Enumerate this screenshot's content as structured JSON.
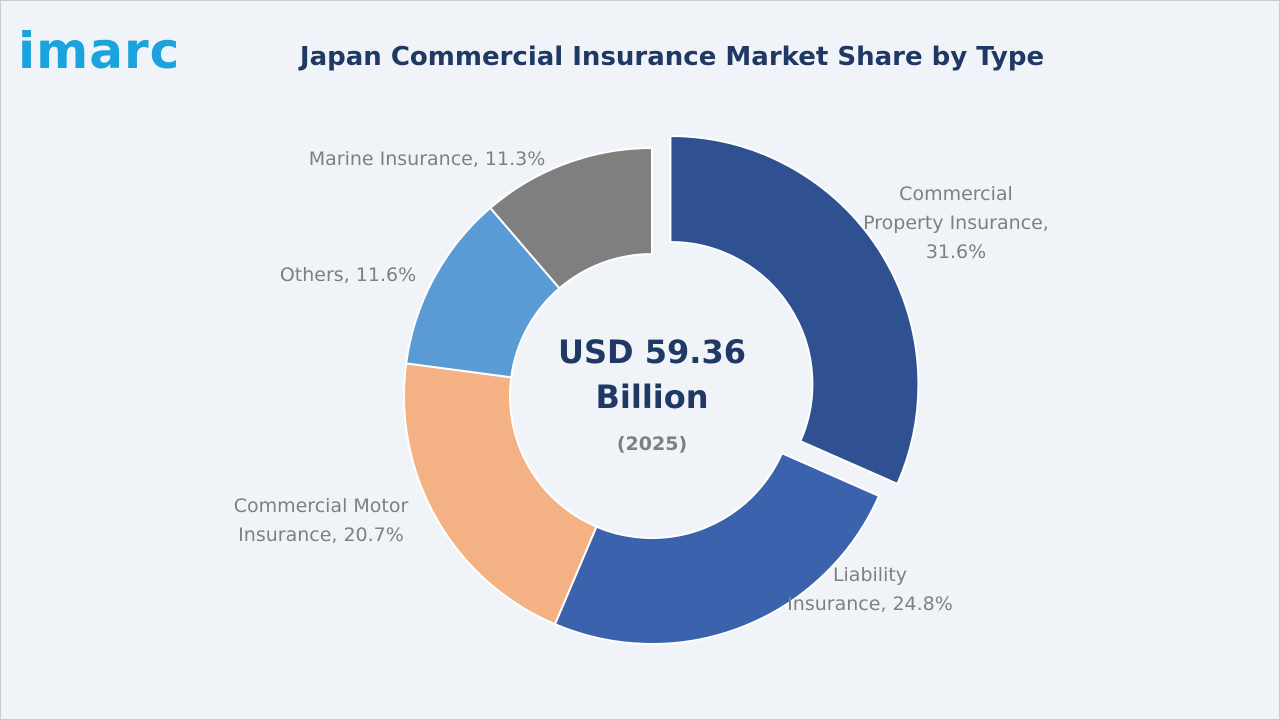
{
  "logo_text": "imarc",
  "chart_data": {
    "type": "pie",
    "title": "Japan Commercial Insurance Market Share by Type",
    "center": {
      "value_line1": "USD 59.36",
      "value_line2": "Billion",
      "year": "(2025)"
    },
    "slices": [
      {
        "name": "Commercial Property Insurance",
        "value": 31.6,
        "color": "#2f5191",
        "label_lines": [
          "Commercial",
          "Property Insurance,",
          "31.6%"
        ],
        "exploded": true
      },
      {
        "name": "Liability Insurance",
        "value": 24.8,
        "color": "#3b63ad",
        "label_lines": [
          "Liability",
          "Insurance, 24.8%"
        ],
        "exploded": false
      },
      {
        "name": "Commercial Motor Insurance",
        "value": 20.7,
        "color": "#f4b183",
        "label_lines": [
          "Commercial Motor",
          "Insurance, 20.7%"
        ],
        "exploded": false
      },
      {
        "name": "Others",
        "value": 11.6,
        "color": "#5b9bd5",
        "label_lines": [
          "Others, 11.6%"
        ],
        "exploded": false
      },
      {
        "name": "Marine Insurance",
        "value": 11.3,
        "color": "#7f7f7f",
        "label_lines": [
          "Marine Insurance, 11.3%"
        ],
        "exploded": false
      }
    ]
  }
}
